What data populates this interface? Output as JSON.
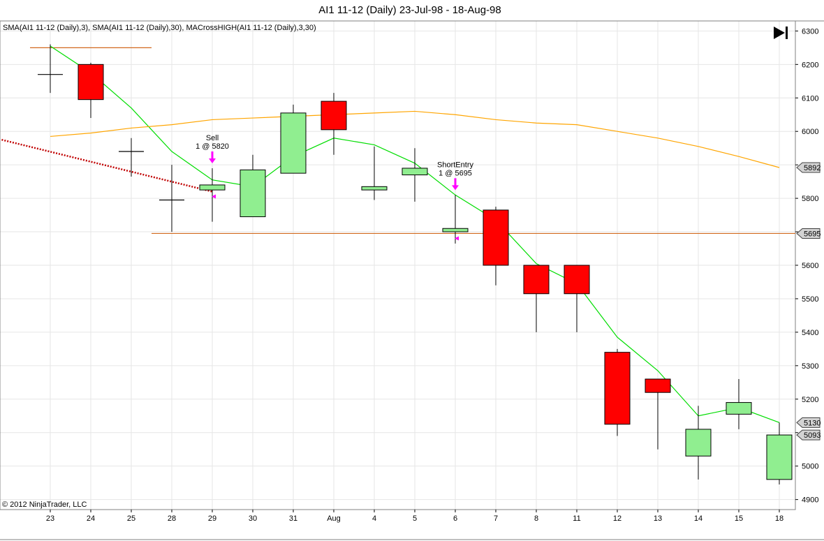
{
  "title": "AI1 11-12 (Daily)  23-Jul-98 - 18-Aug-98",
  "indicator_legend": "SMA(AI1 11-12 (Daily),3), SMA(AI1 11-12 (Daily),30), MACrossHIGH(AI1 11-12 (Daily),3,30)",
  "copyright": "© 2012 NinjaTrader, LLC",
  "icons": {
    "go_to_end": "skip-to-end-icon"
  },
  "colors": {
    "up_candle": "#90ee90",
    "down_candle": "#ff0000",
    "sma_fast": "#00dd00",
    "sma_slow": "#ffa500",
    "hline": "#d2691e",
    "dotted_line": "#c00000",
    "arrow": "#ff00ff",
    "grid": "#e6e6e6"
  },
  "chart_data": {
    "type": "candlestick",
    "x_labels": [
      "23",
      "24",
      "25",
      "28",
      "29",
      "30",
      "31",
      "Aug",
      "4",
      "5",
      "6",
      "7",
      "8",
      "11",
      "12",
      "13",
      "14",
      "15",
      "18"
    ],
    "ylim": [
      4870,
      6330
    ],
    "y_ticks": [
      4900,
      5000,
      5100,
      5200,
      5300,
      5400,
      5500,
      5600,
      5700,
      5800,
      5900,
      6000,
      6100,
      6200,
      6300
    ],
    "grid": true,
    "candles": [
      {
        "open": 6170,
        "high": 6260,
        "low": 6115,
        "close": 6170
      },
      {
        "open": 6200,
        "high": 6205,
        "low": 6040,
        "close": 6095
      },
      {
        "open": 5940,
        "high": 5980,
        "low": 5865,
        "close": 5940
      },
      {
        "open": 5795,
        "high": 5900,
        "low": 5700,
        "close": 5795
      },
      {
        "open": 5825,
        "high": 5890,
        "low": 5730,
        "close": 5840
      },
      {
        "open": 5745,
        "high": 5930,
        "low": 5745,
        "close": 5885
      },
      {
        "open": 5875,
        "high": 6080,
        "low": 5875,
        "close": 6055
      },
      {
        "open": 6090,
        "high": 6115,
        "low": 5930,
        "close": 6005
      },
      {
        "open": 5825,
        "high": 5955,
        "low": 5795,
        "close": 5835
      },
      {
        "open": 5870,
        "high": 5950,
        "low": 5790,
        "close": 5890
      },
      {
        "open": 5700,
        "high": 5810,
        "low": 5665,
        "close": 5710
      },
      {
        "open": 5765,
        "high": 5775,
        "low": 5540,
        "close": 5600
      },
      {
        "open": 5600,
        "high": 5600,
        "low": 5400,
        "close": 5515
      },
      {
        "open": 5600,
        "high": 5600,
        "low": 5400,
        "close": 5515
      },
      {
        "open": 5340,
        "high": 5350,
        "low": 5090,
        "close": 5125
      },
      {
        "open": 5260,
        "high": 5260,
        "low": 5050,
        "close": 5220
      },
      {
        "open": 5030,
        "high": 5180,
        "low": 4960,
        "close": 5110
      },
      {
        "open": 5155,
        "high": 5260,
        "low": 5110,
        "close": 5190
      },
      {
        "open": 4960,
        "high": 5130,
        "low": 4945,
        "close": 5093
      }
    ],
    "series": [
      {
        "name": "SMA(AI1 11-12 (Daily),3)",
        "values": [
          6255,
          6175,
          6070,
          5940,
          5855,
          5835,
          5925,
          5980,
          5960,
          5905,
          5810,
          5735,
          5605,
          5545,
          5385,
          5285,
          5150,
          5175,
          5130
        ]
      },
      {
        "name": "SMA(AI1 11-12 (Daily),30)",
        "values": [
          5985,
          5995,
          6010,
          6020,
          6035,
          6040,
          6045,
          6050,
          6055,
          6060,
          6050,
          6035,
          6025,
          6020,
          6000,
          5980,
          5955,
          5925,
          5892
        ]
      }
    ],
    "horizontal_lines": [
      {
        "value": 6250,
        "from_index": -0.5,
        "to_index": 2.5
      },
      {
        "value": 5695,
        "from_index": 2.5,
        "to_index": 18.5
      }
    ],
    "dotted_line": {
      "from_index": -1.2,
      "from_value": 5975,
      "to_index": 4,
      "to_value": 5820
    },
    "trades": [
      {
        "index": 4,
        "line1": "Sell",
        "line2": "1 @ 5820",
        "value": 5820
      },
      {
        "index": 10,
        "line1": "ShortEntry",
        "line2": "1 @ 5695",
        "value": 5695
      }
    ],
    "price_labels": [
      5892,
      5695,
      5130,
      5093
    ]
  }
}
